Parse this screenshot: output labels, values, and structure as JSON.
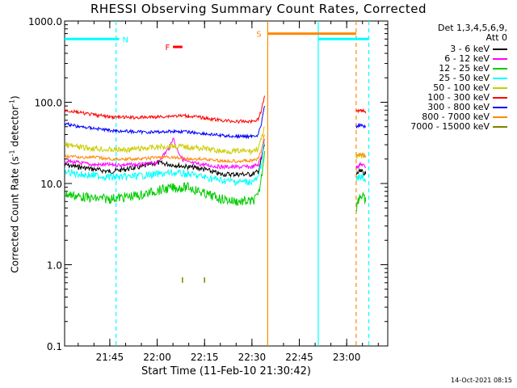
{
  "header": {
    "title": "RHESSI Observing Summary Count Rates, Corrected"
  },
  "footer": {
    "timestamp": "14-Oct-2021 08:15"
  },
  "chart_data": {
    "type": "line",
    "title": "RHESSI Observing Summary Count Rates, Corrected",
    "xlabel": "Start Time (11-Feb-10 21:30:42)",
    "ylabel_main": "Corrected Count Rate (s",
    "ylabel_sup1": "-1",
    "ylabel_mid": " detector",
    "ylabel_sup2": "-1",
    "ylabel_end": ")",
    "yscale": "log",
    "ylim": [
      0.1,
      1000
    ],
    "xlim": [
      "21:30:42",
      "23:13:00"
    ],
    "xticks": [
      "21:45",
      "22:00",
      "22:15",
      "22:30",
      "22:45",
      "23:00"
    ],
    "yticks": [
      "0.1",
      "1.0",
      "10.0",
      "100.0",
      "1000.0"
    ],
    "legend_header": [
      "Det 1,3,4,5,6,9,",
      "Att 0"
    ],
    "grid": false,
    "series": [
      {
        "name": "3 - 6 keV",
        "color": "#000000",
        "x": [
          "21:30:42",
          "21:35",
          "21:40",
          "21:45",
          "21:50",
          "21:55",
          "22:00",
          "22:05",
          "22:10",
          "22:15",
          "22:20",
          "22:25",
          "22:30",
          "22:32",
          "22:33",
          "22:34"
        ],
        "values": [
          17,
          16,
          15,
          14,
          15,
          16,
          18,
          17,
          16,
          15,
          13,
          13,
          13,
          14,
          20,
          30
        ]
      },
      {
        "name": "6 - 12 keV",
        "color": "#ff00ff",
        "x": [
          "21:30:42",
          "21:35",
          "21:40",
          "21:45",
          "21:50",
          "21:55",
          "22:00",
          "22:04",
          "22:05",
          "22:06",
          "22:08",
          "22:10",
          "22:15",
          "22:20",
          "22:25",
          "22:30",
          "22:32",
          "22:33",
          "22:34"
        ],
        "values": [
          19,
          18,
          17,
          17,
          17,
          17,
          18,
          28,
          37,
          28,
          20,
          18,
          17,
          16,
          16,
          16,
          17,
          22,
          35
        ]
      },
      {
        "name": "12 - 25 keV",
        "color": "#00cc00",
        "x": [
          "21:30:42",
          "21:35",
          "21:40",
          "21:45",
          "21:50",
          "21:55",
          "22:00",
          "22:05",
          "22:10",
          "22:15",
          "22:20",
          "22:25",
          "22:30",
          "22:32",
          "22:33",
          "22:34"
        ],
        "values": [
          7.5,
          7,
          6.5,
          6.5,
          6.8,
          7.2,
          8.2,
          8.8,
          9,
          7.5,
          6.5,
          6,
          6,
          7,
          12,
          25
        ]
      },
      {
        "name": "25 - 50 keV",
        "color": "#00ffff",
        "x": [
          "21:30:42",
          "21:35",
          "21:40",
          "21:45",
          "21:50",
          "21:55",
          "22:00",
          "22:05",
          "22:10",
          "22:15",
          "22:20",
          "22:25",
          "22:30",
          "22:32",
          "22:33",
          "22:34"
        ],
        "values": [
          14,
          13,
          12.5,
          12,
          12,
          12.5,
          13,
          13.5,
          13,
          12,
          11,
          10.5,
          10.5,
          11.5,
          18,
          32
        ]
      },
      {
        "name": "50 - 100 keV",
        "color": "#cccc00",
        "x": [
          "21:30:42",
          "21:35",
          "21:40",
          "21:45",
          "21:50",
          "21:55",
          "22:00",
          "22:05",
          "22:10",
          "22:15",
          "22:20",
          "22:25",
          "22:30",
          "22:32",
          "22:33",
          "22:34"
        ],
        "values": [
          30,
          28,
          27,
          26,
          26,
          27,
          28,
          29,
          28,
          27,
          25,
          25,
          25,
          27,
          35,
          50
        ]
      },
      {
        "name": "100 - 300 keV",
        "color": "#ff0000",
        "x": [
          "21:30:42",
          "21:35",
          "21:40",
          "21:45",
          "21:50",
          "21:55",
          "22:00",
          "22:05",
          "22:10",
          "22:15",
          "22:20",
          "22:25",
          "22:30",
          "22:32",
          "22:33",
          "22:34"
        ],
        "values": [
          80,
          75,
          70,
          66,
          65,
          65,
          66,
          68,
          68,
          64,
          60,
          58,
          58,
          62,
          80,
          120
        ]
      },
      {
        "name": "300 - 800 keV",
        "color": "#0000ff",
        "x": [
          "21:30:42",
          "21:35",
          "21:40",
          "21:45",
          "21:50",
          "21:55",
          "22:00",
          "22:05",
          "22:10",
          "22:15",
          "22:20",
          "22:25",
          "22:30",
          "22:32",
          "22:33",
          "22:34"
        ],
        "values": [
          55,
          50,
          48,
          45,
          44,
          43,
          43,
          44,
          43,
          41,
          39,
          38,
          38,
          40,
          55,
          90
        ]
      },
      {
        "name": "800 - 7000 keV",
        "color": "#ff8800",
        "x": [
          "21:30:42",
          "21:35",
          "21:40",
          "21:45",
          "21:50",
          "21:55",
          "22:00",
          "22:05",
          "22:10",
          "22:15",
          "22:20",
          "22:25",
          "22:30",
          "22:32",
          "22:33",
          "22:34"
        ],
        "values": [
          22,
          21,
          21,
          20,
          20,
          20,
          21,
          21,
          20,
          20,
          19,
          19,
          19,
          20,
          26,
          40
        ]
      },
      {
        "name": "7000 - 15000 keV",
        "color": "#808000",
        "x": [
          "22:08",
          "22:09",
          "22:15",
          "22:16"
        ],
        "values": [
          0.7,
          0.6,
          0.7,
          0.6
        ]
      }
    ],
    "late_segment": {
      "x": [
        "23:03",
        "23:04",
        "23:05",
        "23:06"
      ],
      "values": {
        "3 - 6 keV": [
          13,
          14,
          14,
          13
        ],
        "6 - 12 keV": [
          16,
          17,
          17,
          16
        ],
        "12 - 25 keV": [
          5,
          7,
          7,
          6
        ],
        "25 - 50 keV": [
          11,
          12,
          12,
          11
        ],
        "50 - 100 keV": [
          20,
          22,
          22,
          21
        ],
        "100 - 300 keV": [
          78,
          80,
          80,
          76
        ],
        "300 - 800 keV": [
          50,
          52,
          51,
          49
        ],
        "800 - 7000 keV": [
          22,
          23,
          23,
          22
        ]
      }
    },
    "annotations": [
      {
        "label": "N",
        "color": "#00ffff"
      },
      {
        "label": "F",
        "color": "#ff0000"
      },
      {
        "label": "S",
        "color": "#ff8800"
      }
    ],
    "flag_bars": [
      {
        "label": "N",
        "color": "#00ffff",
        "x_start": "21:30:42",
        "x_end": "21:48",
        "value": 600
      },
      {
        "label": "N",
        "color": "#00ffff",
        "x_start": "22:51",
        "x_end": "23:07",
        "value": 600
      },
      {
        "label": "F",
        "color": "#ff0000",
        "x_start": "22:05",
        "x_end": "22:08",
        "value": 480
      },
      {
        "label": "S",
        "color": "#ff8800",
        "x_start": "22:35",
        "x_end": "23:03",
        "value": 700
      }
    ],
    "vertical_lines": [
      {
        "x": "21:47",
        "color": "#00ffff",
        "style": "dashed"
      },
      {
        "x": "22:35",
        "color": "#ff8800",
        "style": "solid"
      },
      {
        "x": "22:51",
        "color": "#00ffff",
        "style": "solid"
      },
      {
        "x": "23:03",
        "color": "#ff8800",
        "style": "dashed"
      },
      {
        "x": "23:07",
        "color": "#00ffff",
        "style": "dashed"
      }
    ]
  }
}
